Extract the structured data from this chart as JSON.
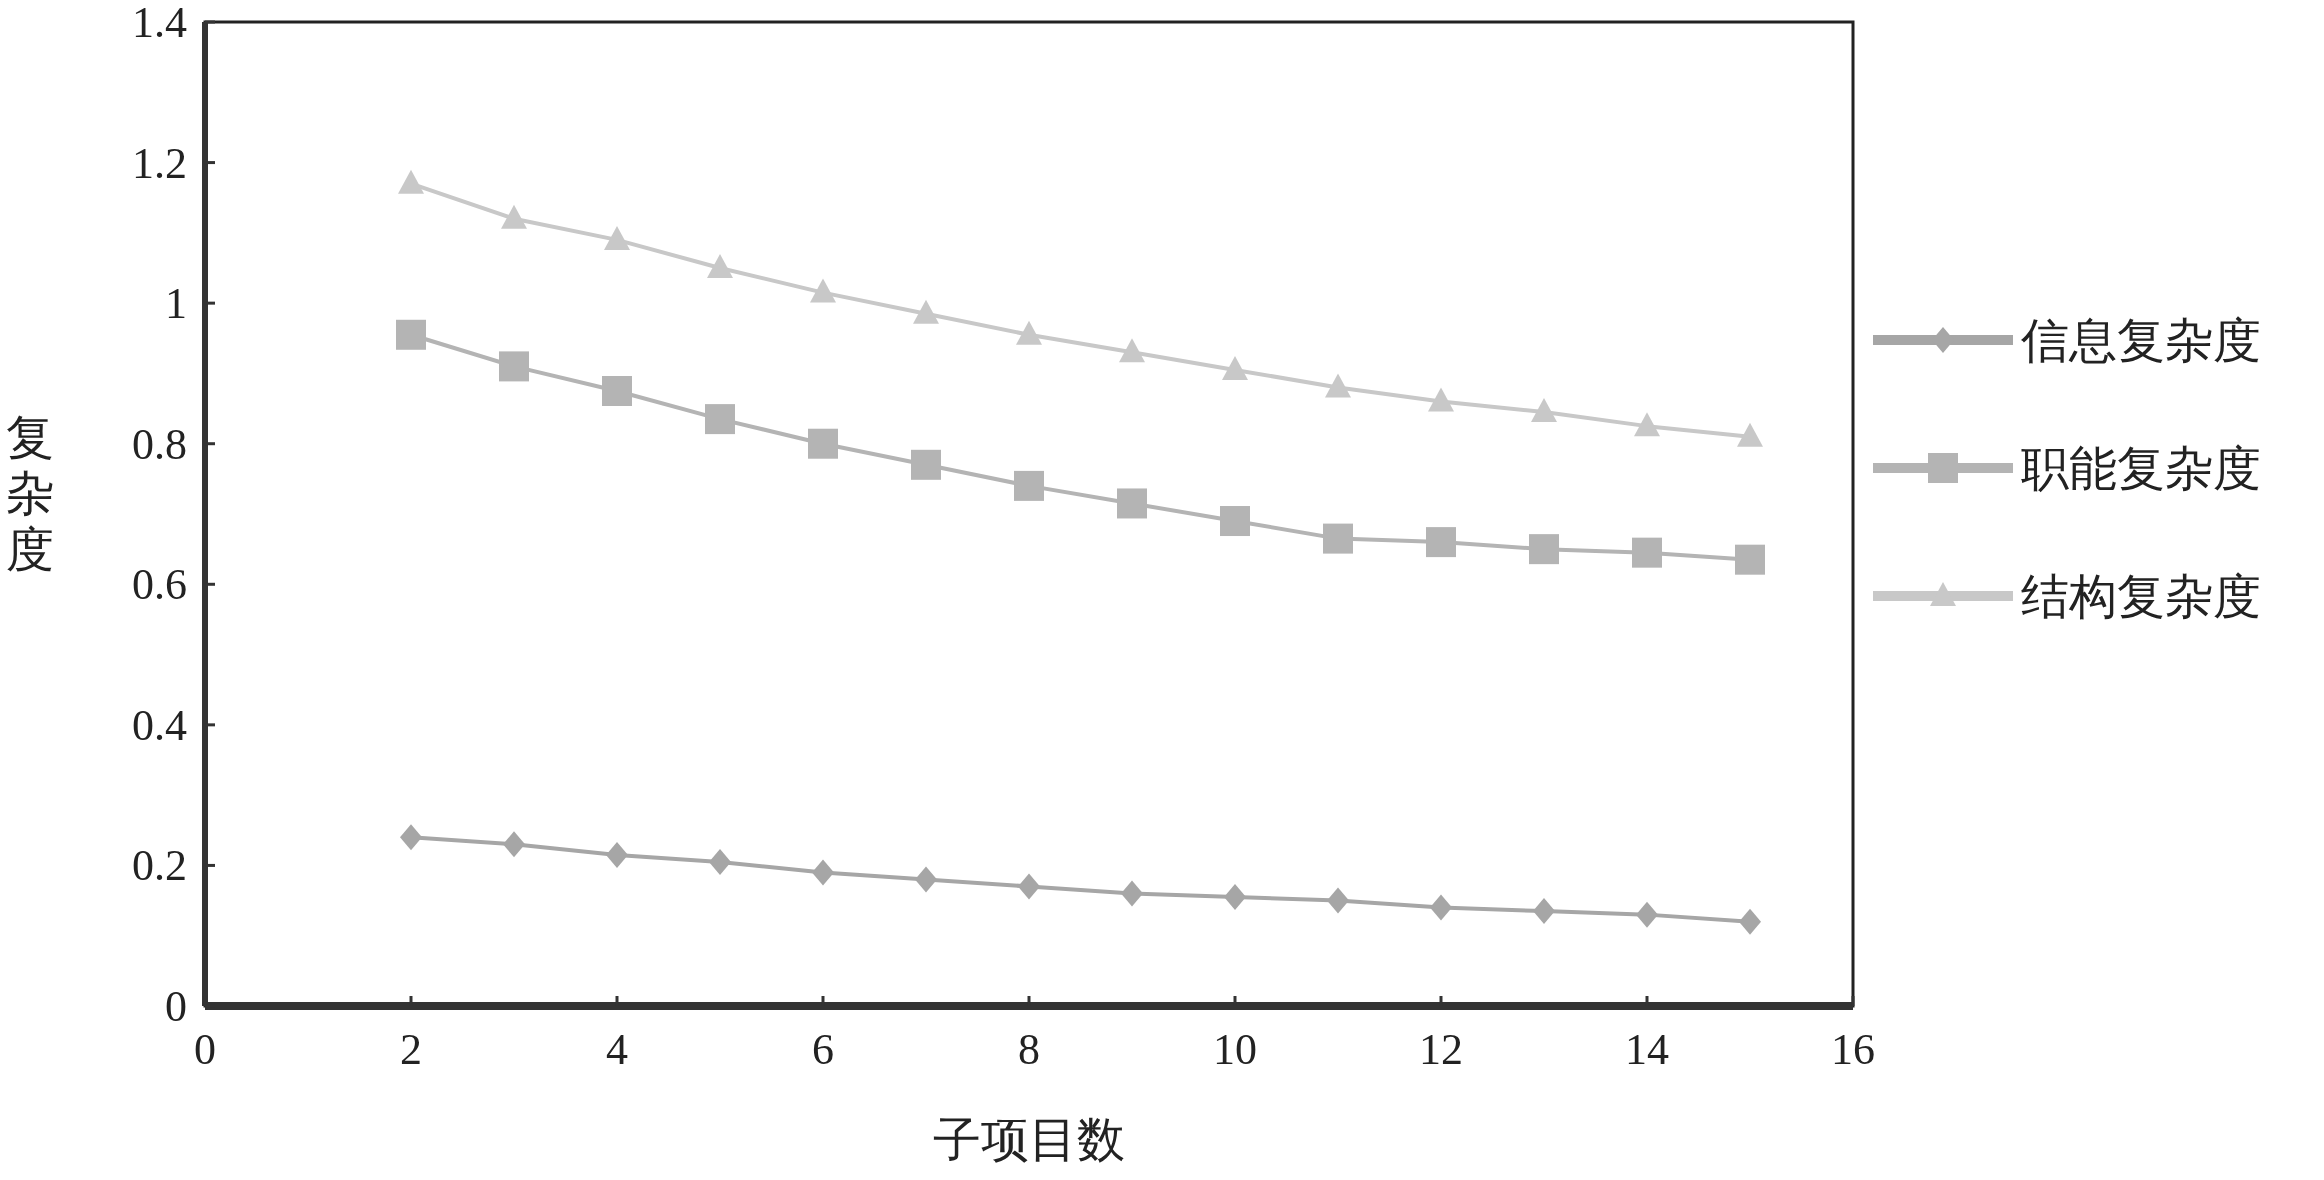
{
  "chart_data": {
    "type": "line",
    "xlabel": "子项目数",
    "ylabel": "复杂度",
    "x": [
      2,
      3,
      4,
      5,
      6,
      7,
      8,
      9,
      10,
      11,
      12,
      13,
      14,
      15
    ],
    "xlim": [
      0,
      16
    ],
    "xticks": [
      0,
      2,
      4,
      6,
      8,
      10,
      12,
      14,
      16
    ],
    "ylim": [
      0,
      1.4
    ],
    "yticks": [
      0,
      0.2,
      0.4,
      0.6,
      0.8,
      1,
      1.2,
      1.4
    ],
    "grid": false,
    "legend": "right",
    "line_style": "solid",
    "series": [
      {
        "name": "信息复杂度",
        "color": "#a6a6a6",
        "marker": "diamond",
        "values": [
          0.24,
          0.23,
          0.215,
          0.205,
          0.19,
          0.18,
          0.17,
          0.16,
          0.155,
          0.15,
          0.14,
          0.135,
          0.13,
          0.12
        ]
      },
      {
        "name": "职能复杂度",
        "color": "#b4b4b4",
        "marker": "square",
        "values": [
          0.955,
          0.91,
          0.875,
          0.835,
          0.8,
          0.77,
          0.74,
          0.715,
          0.69,
          0.665,
          0.66,
          0.65,
          0.645,
          0.635
        ]
      },
      {
        "name": "结构复杂度",
        "color": "#c8c8c8",
        "marker": "triangle",
        "values": [
          1.17,
          1.12,
          1.09,
          1.05,
          1.015,
          0.985,
          0.955,
          0.93,
          0.905,
          0.88,
          0.86,
          0.845,
          0.825,
          0.81
        ]
      }
    ]
  }
}
